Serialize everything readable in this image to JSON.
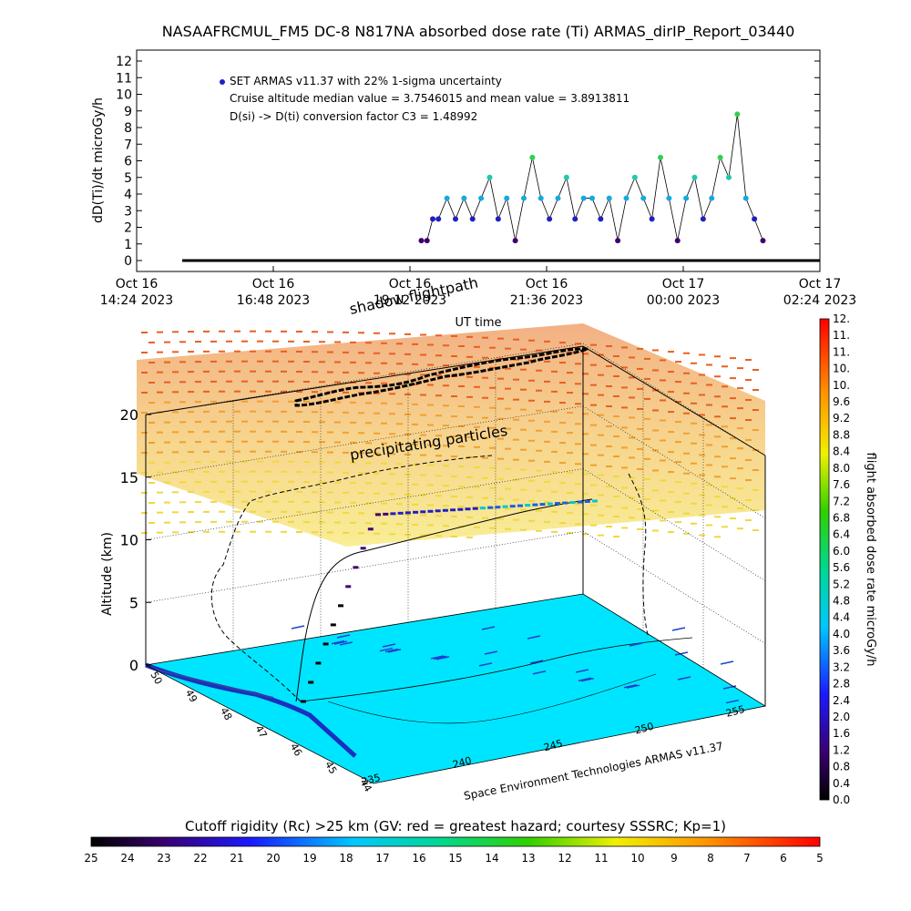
{
  "chart_data": [
    {
      "type": "scatter",
      "title": "NASAAFRCMUL_FM5 DC-8   N817NA absorbed dose rate (Ti) ARMAS_dirIP_Report_03440",
      "xlabel": "UT time",
      "ylabel": "dD(Ti)/dt microGy/h",
      "ylim": [
        0,
        12
      ],
      "yticks": [
        "0",
        "1",
        "2",
        "3",
        "4",
        "5",
        "6",
        "7",
        "8",
        "9",
        "10",
        "11",
        "12"
      ],
      "xticks": [
        {
          "line1": "Oct 16",
          "line2": "14:24 2023"
        },
        {
          "line1": "Oct 16",
          "line2": "16:48 2023"
        },
        {
          "line1": "Oct 16",
          "line2": "19:12 2023"
        },
        {
          "line1": "Oct 16",
          "line2": "21:36 2023"
        },
        {
          "line1": "Oct 17",
          "line2": "00:00 2023"
        },
        {
          "line1": "Oct 17",
          "line2": "02:24 2023"
        }
      ],
      "legend": "SET ARMAS v11.37 with 22% 1-sigma uncertainty",
      "annotations": [
        "Cruise altitude median value = 3.7546015 and mean value = 3.8913811",
        "D(si) -> D(ti) conversion factor C3 = 1.48992"
      ],
      "series": [
        {
          "x_hours": [
            0.8,
            1.0,
            1.2,
            1.4,
            1.6,
            1.8,
            2.0,
            2.2,
            2.4,
            2.6,
            2.8,
            3.0,
            3.2,
            3.4,
            3.6,
            3.8,
            4.0,
            4.2,
            4.4,
            4.6,
            4.8,
            4.87,
            5.0,
            5.2,
            5.4,
            5.6,
            5.8,
            6.0,
            6.2,
            6.4,
            6.6,
            6.8,
            7.0,
            7.2,
            7.4,
            7.6,
            7.8,
            8.0,
            8.2,
            8.4,
            8.6,
            8.8,
            9.0,
            9.2,
            9.4,
            9.6,
            9.8,
            10.0,
            10.2,
            10.4,
            10.6,
            10.8,
            11.0,
            11.2,
            11.4,
            11.6,
            11.8,
            12.0
          ],
          "values": [
            0,
            0,
            0,
            0,
            0,
            0,
            0,
            0,
            0,
            0,
            0,
            0,
            0,
            0,
            0,
            0,
            0,
            0,
            0,
            0,
            0,
            0,
            0,
            0,
            0,
            0,
            0,
            0,
            0,
            0,
            0,
            0,
            0,
            0,
            0,
            0,
            0,
            0,
            0,
            0,
            0,
            0,
            0,
            0,
            0,
            0,
            0,
            0,
            0,
            0,
            0,
            0,
            0,
            0,
            0,
            0,
            0,
            0
          ]
        },
        {
          "x_hours": [
            5.0,
            5.1,
            5.2,
            5.3,
            5.45,
            5.6,
            5.75,
            5.9,
            6.05,
            6.2,
            6.35,
            6.5,
            6.65,
            6.8,
            6.95,
            7.1,
            7.25,
            7.4,
            7.55,
            7.7,
            7.85,
            8.0,
            8.15,
            8.3,
            8.45,
            8.6,
            8.75,
            8.9,
            9.05,
            9.2,
            9.35,
            9.5,
            9.65,
            9.8,
            9.95,
            10.1,
            10.25,
            10.4,
            10.55,
            10.7,
            10.85,
            11.0
          ],
          "values": [
            1.2,
            1.2,
            2.5,
            2.5,
            3.75,
            2.5,
            3.75,
            2.5,
            3.75,
            5.0,
            2.5,
            3.75,
            1.2,
            3.75,
            6.2,
            3.75,
            2.5,
            3.75,
            5.0,
            2.5,
            3.75,
            3.75,
            2.5,
            3.75,
            1.2,
            3.75,
            5.0,
            3.75,
            2.5,
            6.2,
            3.75,
            1.2,
            3.75,
            5.0,
            2.5,
            3.75,
            6.2,
            5.0,
            8.8,
            3.75,
            2.5,
            1.2
          ]
        }
      ]
    },
    {
      "type": "scatter",
      "title": "",
      "zlabel": "Altitude (km)",
      "zticks": [
        "0",
        "5",
        "10",
        "15",
        "20"
      ],
      "lat_ticks": [
        "50",
        "49",
        "48",
        "47",
        "46",
        "45",
        "44"
      ],
      "lon_ticks": [
        "235",
        "240",
        "245",
        "250",
        "255"
      ],
      "annotations": [
        "shadow flightpath",
        "precipitating particles",
        "Space Environment Technologies ARMAS v11.37"
      ],
      "colorbar_right": {
        "title": "flight absorbed dose rate microGy/h",
        "labels": [
          "0.0",
          "0.4",
          "0.8",
          "1.2",
          "1.6",
          "2.0",
          "2.4",
          "2.8",
          "3.2",
          "3.6",
          "4.0",
          "4.4",
          "4.8",
          "5.2",
          "5.6",
          "6.0",
          "6.4",
          "6.8",
          "7.2",
          "7.6",
          "8.0",
          "8.4",
          "8.8",
          "9.2",
          "9.6",
          "10.",
          "10.",
          "11.",
          "11.",
          "12."
        ]
      },
      "colorbar_bottom": {
        "title": "Cutoff rigidity (Rc) >25 km (GV: red = greatest hazard; courtesy SSSRC; Kp=1)",
        "labels": [
          "25",
          "24",
          "23",
          "22",
          "21",
          "20",
          "19",
          "18",
          "17",
          "16",
          "15",
          "14",
          "13",
          "12",
          "11",
          "10",
          "9",
          "8",
          "7",
          "6",
          "5"
        ]
      },
      "colors": {
        "surface": "#00e5ff",
        "marker_high": "#00c8c8",
        "marker_low": "#2020c0"
      }
    }
  ]
}
